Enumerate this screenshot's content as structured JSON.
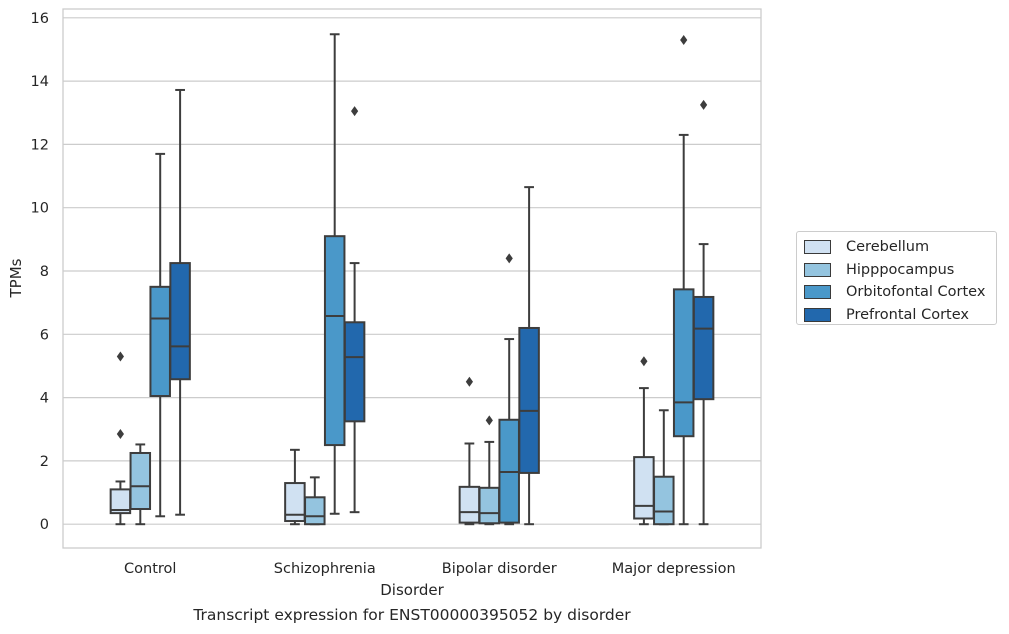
{
  "chart_data": {
    "type": "box",
    "caption": "Transcript expression for ENST00000395052 by disorder",
    "xlabel": "Disorder",
    "ylabel": "TPMs",
    "ylim": [
      -0.75,
      16.3
    ],
    "yticks": [
      0,
      2,
      4,
      6,
      8,
      10,
      12,
      14,
      16
    ],
    "grid": "horizontal",
    "legend_position": "right",
    "categories": [
      "Control",
      "Schizophrenia",
      "Bipolar disorder",
      "Major depression"
    ],
    "series": [
      {
        "name": "Cerebellum",
        "color": "#d0e1f2",
        "boxes": [
          {
            "whislo": 0.0,
            "q1": 0.35,
            "med": 0.45,
            "q3": 1.1,
            "whishi": 1.35,
            "fliers": [
              2.85,
              5.3
            ]
          },
          {
            "whislo": 0.0,
            "q1": 0.1,
            "med": 0.3,
            "q3": 1.3,
            "whishi": 2.35,
            "fliers": []
          },
          {
            "whislo": 0.0,
            "q1": 0.05,
            "med": 0.38,
            "q3": 1.18,
            "whishi": 2.55,
            "fliers": [
              4.5
            ]
          },
          {
            "whislo": 0.0,
            "q1": 0.18,
            "med": 0.58,
            "q3": 2.12,
            "whishi": 4.3,
            "fliers": [
              5.15
            ]
          }
        ]
      },
      {
        "name": "Hipppocampus",
        "color": "#94c4df",
        "boxes": [
          {
            "whislo": 0.0,
            "q1": 0.48,
            "med": 1.2,
            "q3": 2.25,
            "whishi": 2.52,
            "fliers": []
          },
          {
            "whislo": 0.0,
            "q1": 0.0,
            "med": 0.25,
            "q3": 0.85,
            "whishi": 1.48,
            "fliers": []
          },
          {
            "whislo": 0.0,
            "q1": 0.03,
            "med": 0.35,
            "q3": 1.15,
            "whishi": 2.6,
            "fliers": [
              3.28
            ]
          },
          {
            "whislo": 0.0,
            "q1": 0.0,
            "med": 0.4,
            "q3": 1.5,
            "whishi": 3.6,
            "fliers": []
          }
        ]
      },
      {
        "name": "Orbitofontal Cortex",
        "color": "#4a98c9",
        "boxes": [
          {
            "whislo": 0.25,
            "q1": 4.05,
            "med": 6.5,
            "q3": 7.5,
            "whishi": 11.7,
            "fliers": []
          },
          {
            "whislo": 0.33,
            "q1": 2.5,
            "med": 6.58,
            "q3": 9.1,
            "whishi": 15.48,
            "fliers": []
          },
          {
            "whislo": 0.0,
            "q1": 0.05,
            "med": 1.65,
            "q3": 3.3,
            "whishi": 5.85,
            "fliers": [
              8.4
            ]
          },
          {
            "whislo": 0.0,
            "q1": 2.78,
            "med": 3.85,
            "q3": 7.42,
            "whishi": 12.3,
            "fliers": [
              15.3
            ]
          }
        ]
      },
      {
        "name": "Prefrontal Cortex",
        "color": "#2268ad",
        "boxes": [
          {
            "whislo": 0.3,
            "q1": 4.58,
            "med": 5.62,
            "q3": 8.25,
            "whishi": 13.72,
            "fliers": []
          },
          {
            "whislo": 0.38,
            "q1": 3.25,
            "med": 5.28,
            "q3": 6.38,
            "whishi": 8.25,
            "fliers": [
              13.05
            ]
          },
          {
            "whislo": 0.0,
            "q1": 1.62,
            "med": 3.58,
            "q3": 6.2,
            "whishi": 10.65,
            "fliers": []
          },
          {
            "whislo": 0.0,
            "q1": 3.95,
            "med": 6.18,
            "q3": 7.18,
            "whishi": 8.85,
            "fliers": [
              13.25
            ]
          }
        ]
      }
    ]
  }
}
